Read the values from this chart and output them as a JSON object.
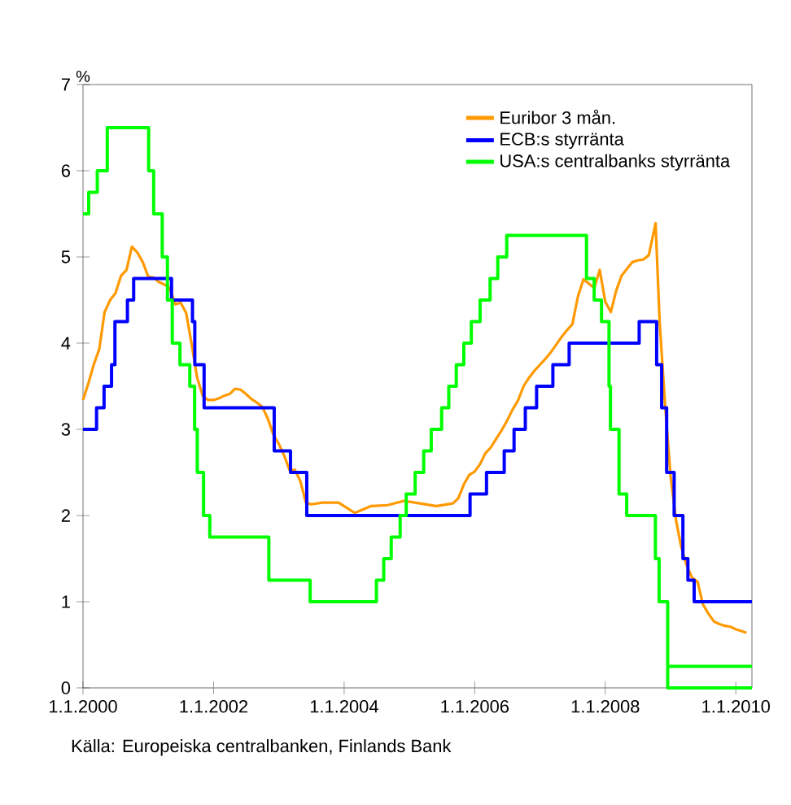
{
  "chart_data": {
    "type": "line",
    "ylabel": "%",
    "annotations": [
      "Källa: Europeiska centralbanken, Finlands Bank"
    ],
    "xlim": [
      "2000-01-01",
      "2010-04-01"
    ],
    "xticks": [
      {
        "value": "2000-01-01",
        "label": "1.1.2000"
      },
      {
        "value": "2002-01-01",
        "label": "1.1.2002"
      },
      {
        "value": "2004-01-01",
        "label": "1.1.2004"
      },
      {
        "value": "2006-01-01",
        "label": "1.1.2006"
      },
      {
        "value": "2008-01-01",
        "label": "1.1.2008"
      },
      {
        "value": "2010-01-01",
        "label": "1.1.2010"
      }
    ],
    "ylim": [
      0,
      7
    ],
    "yticks": [
      0,
      1,
      2,
      3,
      4,
      5,
      6,
      7
    ],
    "grid": false,
    "legend": "top right",
    "marker": "none",
    "line_style": "solid",
    "series": [
      {
        "name": "Euribor 3 mån.",
        "color": "#ff9900",
        "x": [
          "2000-01",
          "2000-02",
          "2000-03",
          "2000-04",
          "2000-05",
          "2000-06",
          "2000-07",
          "2000-08",
          "2000-09",
          "2000-10",
          "2000-11",
          "2000-12",
          "2001-01",
          "2001-02",
          "2001-03",
          "2001-04",
          "2001-05",
          "2001-06",
          "2001-07",
          "2001-08",
          "2001-09",
          "2001-10",
          "2001-11",
          "2001-12",
          "2002-01",
          "2002-02",
          "2002-03",
          "2002-04",
          "2002-05",
          "2002-06",
          "2002-07",
          "2002-08",
          "2002-09",
          "2002-10",
          "2002-11",
          "2002-12",
          "2003-01",
          "2003-02",
          "2003-03",
          "2003-04",
          "2003-05",
          "2003-06",
          "2003-07",
          "2003-09",
          "2003-12",
          "2004-03",
          "2004-06",
          "2004-09",
          "2004-12",
          "2005-03",
          "2005-06",
          "2005-09",
          "2005-10",
          "2005-11",
          "2005-12",
          "2006-01",
          "2006-02",
          "2006-03",
          "2006-04",
          "2006-05",
          "2006-06",
          "2006-07",
          "2006-08",
          "2006-09",
          "2006-10",
          "2006-11",
          "2006-12",
          "2007-01",
          "2007-02",
          "2007-03",
          "2007-04",
          "2007-05",
          "2007-06",
          "2007-07",
          "2007-08",
          "2007-09",
          "2007-10",
          "2007-11",
          "2007-12",
          "2008-01",
          "2008-02",
          "2008-03",
          "2008-04",
          "2008-05",
          "2008-06",
          "2008-07",
          "2008-08",
          "2008-09",
          "2008-10-09",
          "2008-11",
          "2008-12",
          "2009-01",
          "2009-02",
          "2009-03",
          "2009-04",
          "2009-05",
          "2009-06",
          "2009-07",
          "2009-08",
          "2009-09",
          "2009-10",
          "2009-11",
          "2009-12",
          "2010-01",
          "2010-02",
          "2010-03"
        ],
        "values": [
          3.34,
          3.54,
          3.75,
          3.93,
          4.36,
          4.5,
          4.58,
          4.78,
          4.85,
          5.12,
          5.05,
          4.94,
          4.77,
          4.76,
          4.71,
          4.68,
          4.64,
          4.45,
          4.47,
          4.35,
          3.98,
          3.6,
          3.39,
          3.34,
          3.34,
          3.36,
          3.39,
          3.41,
          3.47,
          3.46,
          3.41,
          3.35,
          3.31,
          3.26,
          3.12,
          2.94,
          2.83,
          2.69,
          2.53,
          2.53,
          2.4,
          2.15,
          2.13,
          2.15,
          2.15,
          2.03,
          2.11,
          2.12,
          2.17,
          2.14,
          2.11,
          2.14,
          2.2,
          2.36,
          2.47,
          2.51,
          2.6,
          2.72,
          2.79,
          2.89,
          2.99,
          3.1,
          3.23,
          3.34,
          3.5,
          3.6,
          3.68,
          3.75,
          3.82,
          3.89,
          3.98,
          4.07,
          4.15,
          4.22,
          4.54,
          4.74,
          4.69,
          4.64,
          4.85,
          4.48,
          4.36,
          4.6,
          4.78,
          4.86,
          4.94,
          4.96,
          4.97,
          5.02,
          5.39,
          4.24,
          3.29,
          2.46,
          1.94,
          1.64,
          1.42,
          1.28,
          1.23,
          0.97,
          0.86,
          0.77,
          0.74,
          0.72,
          0.71,
          0.68,
          0.66,
          0.64
        ]
      },
      {
        "name": "ECB:s styrränta",
        "type": "step",
        "color": "#0000ff",
        "x": [
          "2000-01-01",
          "2000-03-17",
          "2000-04-28",
          "2000-06-09",
          "2000-06-28",
          "2000-09-06",
          "2000-10-11",
          "2001-05-11",
          "2001-09-05",
          "2001-09-18",
          "2001-11-09",
          "2002-12-06",
          "2003-03-07",
          "2003-06-06",
          "2005-12-06",
          "2006-03-08",
          "2006-06-15",
          "2006-08-09",
          "2006-10-11",
          "2006-12-13",
          "2007-03-14",
          "2007-06-13",
          "2008-07-09",
          "2008-10-15",
          "2008-11-12",
          "2008-12-10",
          "2009-01-21",
          "2009-03-11",
          "2009-04-08",
          "2009-05-13",
          "2010-04-01"
        ],
        "values": [
          3.0,
          3.25,
          3.5,
          3.75,
          4.25,
          4.5,
          4.75,
          4.5,
          4.25,
          3.75,
          3.25,
          2.75,
          2.5,
          2.0,
          2.25,
          2.5,
          2.75,
          3.0,
          3.25,
          3.5,
          3.75,
          4.0,
          4.25,
          3.75,
          3.25,
          2.5,
          2.0,
          1.5,
          1.25,
          1.0,
          1.0
        ]
      },
      {
        "name": "USA:s centralbanks styrränta",
        "type": "step",
        "color": "#00ff00",
        "x": [
          "2000-01-01",
          "2000-02-02",
          "2000-03-21",
          "2000-05-16",
          "2001-01-03",
          "2001-01-31",
          "2001-03-20",
          "2001-04-18",
          "2001-05-15",
          "2001-06-27",
          "2001-08-21",
          "2001-09-17",
          "2001-10-02",
          "2001-11-06",
          "2001-12-11",
          "2002-11-06",
          "2003-06-25",
          "2004-06-30",
          "2004-08-10",
          "2004-09-21",
          "2004-11-10",
          "2004-12-14",
          "2005-02-02",
          "2005-03-22",
          "2005-05-03",
          "2005-06-30",
          "2005-08-09",
          "2005-09-20",
          "2005-11-01",
          "2005-12-13",
          "2006-01-31",
          "2006-03-28",
          "2006-05-10",
          "2006-06-29",
          "2007-09-18",
          "2007-10-31",
          "2007-12-11",
          "2008-01-22",
          "2008-01-30",
          "2008-03-18",
          "2008-04-30",
          "2008-10-08",
          "2008-10-29",
          "2008-12-16",
          "2010-04-01"
        ],
        "values": [
          5.5,
          5.75,
          6.0,
          6.5,
          6.0,
          5.5,
          5.0,
          4.5,
          4.0,
          3.75,
          3.5,
          3.0,
          2.5,
          2.0,
          1.75,
          1.25,
          1.0,
          1.25,
          1.5,
          1.75,
          2.0,
          2.25,
          2.5,
          2.75,
          3.0,
          3.25,
          3.5,
          3.75,
          4.0,
          4.25,
          4.5,
          4.75,
          5.0,
          5.25,
          4.75,
          4.5,
          4.25,
          3.5,
          3.0,
          2.25,
          2.0,
          1.5,
          1.0,
          0.0,
          0.0
        ]
      },
      {
        "type": "step",
        "color": "#00ff00",
        "x": [
          "2008-12-16",
          "2010-04-01"
        ],
        "values": [
          0.25,
          0.25
        ]
      }
    ]
  }
}
